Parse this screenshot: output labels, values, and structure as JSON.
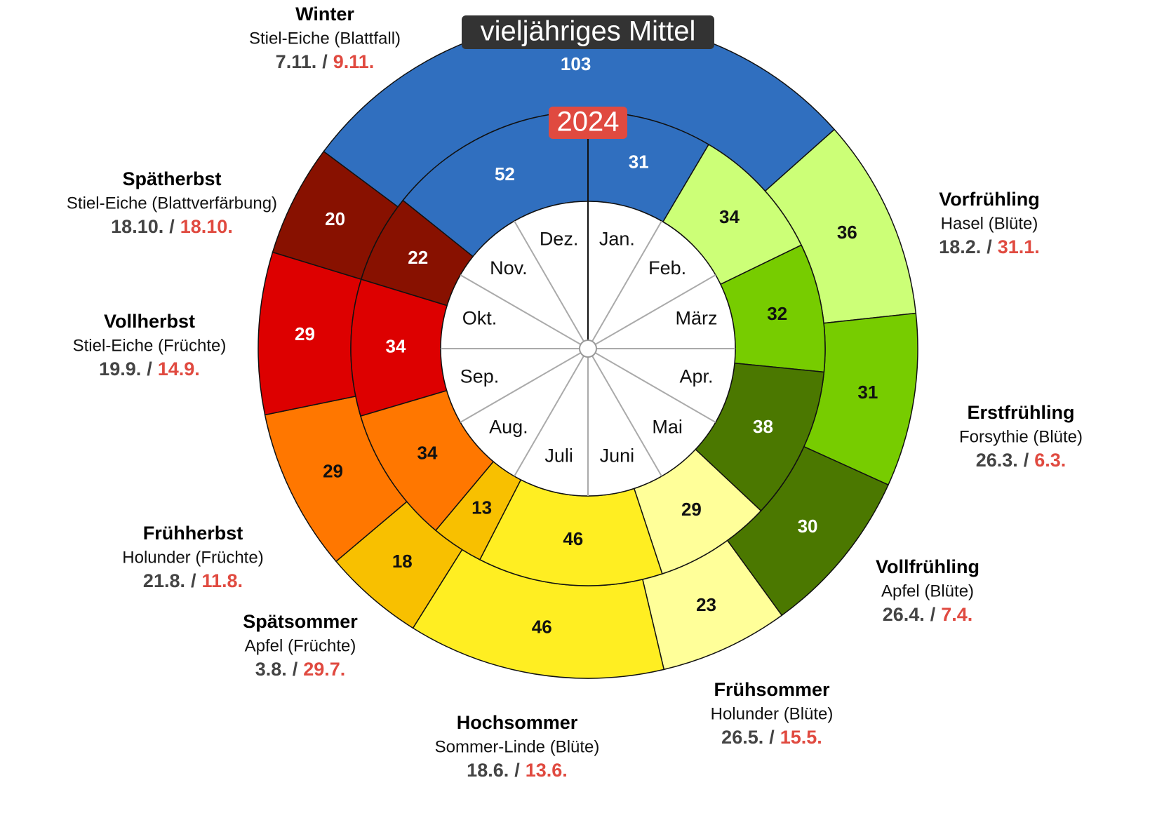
{
  "chart_data": {
    "type": "pie",
    "series": [
      {
        "name": "vieljähriges Mittel",
        "values": [
          36,
          31,
          30,
          23,
          46,
          18,
          29,
          29,
          20,
          103
        ],
        "colors": [
          "#ccff77",
          "#77cc00",
          "#4b7800",
          "#ffff99",
          "#ffee22",
          "#f8c000",
          "#ff7700",
          "#dd0000",
          "#881100",
          "#306fbf"
        ]
      },
      {
        "name": "2024",
        "values": [
          34,
          32,
          38,
          29,
          46,
          13,
          34,
          34,
          22,
          52,
          31
        ],
        "colors": [
          "#ccff77",
          "#77cc00",
          "#4b7800",
          "#ffff99",
          "#ffee22",
          "#f8c000",
          "#ff7700",
          "#dd0000",
          "#881100",
          "#306fbf",
          "#306fbf"
        ]
      }
    ],
    "seasons": [
      {
        "name": "Vorfrühling",
        "species": "Hasel (Blüte)",
        "mean": "18.2.",
        "current": "31.1."
      },
      {
        "name": "Erstfrühling",
        "species": "Forsythie (Blüte)",
        "mean": "26.3.",
        "current": "6.3."
      },
      {
        "name": "Vollfrühling",
        "species": "Apfel (Blüte)",
        "mean": "26.4.",
        "current": "7.4."
      },
      {
        "name": "Frühsommer",
        "species": "Holunder (Blüte)",
        "mean": "26.5.",
        "current": "15.5."
      },
      {
        "name": "Hochsommer",
        "species": "Sommer-Linde (Blüte)",
        "mean": "18.6.",
        "current": "13.6."
      },
      {
        "name": "Spätsommer",
        "species": "Apfel (Früchte)",
        "mean": "3.8.",
        "current": "29.7."
      },
      {
        "name": "Frühherbst",
        "species": "Holunder (Früchte)",
        "mean": "21.8.",
        "current": "11.8."
      },
      {
        "name": "Vollherbst",
        "species": "Stiel-Eiche (Früchte)",
        "mean": "19.9.",
        "current": "14.9."
      },
      {
        "name": "Spätherbst",
        "species": "Stiel-Eiche (Blattverfärbung)",
        "mean": "18.10.",
        "current": "18.10."
      },
      {
        "name": "Winter",
        "species": "Stiel-Eiche (Blattfall)",
        "mean": "7.11.",
        "current": "9.11."
      }
    ],
    "separator": "/",
    "months": [
      "Jan.",
      "Feb.",
      "März",
      "Apr.",
      "Mai",
      "Juni",
      "Juli",
      "Aug.",
      "Sep.",
      "Okt.",
      "Nov.",
      "Dez."
    ]
  }
}
